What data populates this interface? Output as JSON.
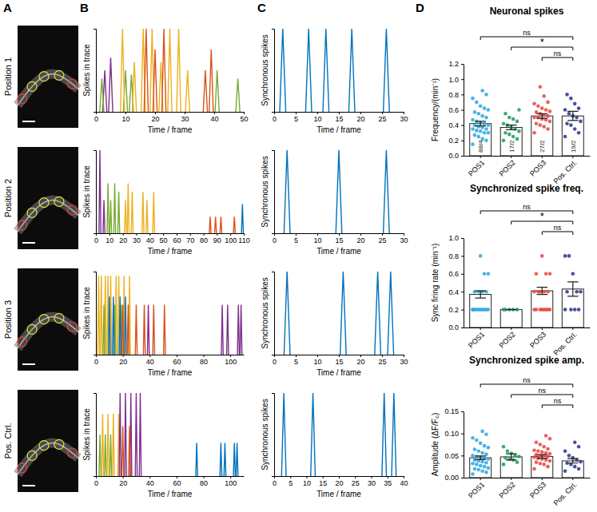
{
  "panel_labels": [
    "A",
    "B",
    "C",
    "D"
  ],
  "row_labels": [
    "Position 1",
    "Position 2",
    "Position 3",
    "Pos. Ctrl."
  ],
  "chart_data": [
    {
      "type": "spike",
      "xlabel": "Time / frame",
      "ylabel": "Spikes in trace",
      "xlim": [
        0,
        50
      ],
      "xticks": [
        0,
        10,
        20,
        30,
        40,
        50
      ],
      "ylim": [
        0,
        1
      ],
      "tick_labels": "x",
      "series": [
        {
          "color": "#7E2F8E",
          "x": [
            3,
            5
          ],
          "values": [
            0.5,
            0.65
          ]
        },
        {
          "color": "#77AC30",
          "x": [
            2,
            10,
            12,
            41,
            48
          ],
          "values": [
            0.4,
            0.5,
            0.45,
            0.5,
            0.4
          ]
        },
        {
          "color": "#EDB120",
          "x": [
            9,
            13,
            16,
            19,
            22,
            25,
            28,
            31
          ],
          "values": [
            1.0,
            0.6,
            1.0,
            1.0,
            0.6,
            1.0,
            1.0,
            0.5
          ]
        },
        {
          "color": "#D95319",
          "x": [
            17,
            20,
            23,
            37,
            39
          ],
          "values": [
            1.0,
            0.75,
            1.0,
            0.5,
            0.75
          ]
        }
      ]
    },
    {
      "type": "spike",
      "xlabel": "Time / frame",
      "ylabel": "Spikes in trace",
      "xlim": [
        0,
        110
      ],
      "xticks": [
        0,
        10,
        20,
        30,
        40,
        50,
        60,
        70,
        80,
        90,
        100,
        110
      ],
      "ylim": [
        0,
        1
      ],
      "tick_labels": "x",
      "series": [
        {
          "color": "#7E2F8E",
          "x": [
            3,
            6
          ],
          "values": [
            1.0,
            0.4
          ]
        },
        {
          "color": "#77AC30",
          "x": [
            9,
            11,
            14,
            17
          ],
          "values": [
            0.6,
            0.4,
            0.6,
            0.5
          ]
        },
        {
          "color": "#EDB120",
          "x": [
            22,
            24,
            27,
            35,
            38,
            43
          ],
          "values": [
            0.4,
            0.6,
            0.5,
            0.5,
            0.4,
            0.5
          ]
        },
        {
          "color": "#D95319",
          "x": [
            85,
            89,
            93,
            103
          ],
          "values": [
            0.2,
            0.2,
            0.2,
            0.2
          ]
        },
        {
          "color": "#0072BD",
          "x": [
            109
          ],
          "values": [
            0.35
          ]
        }
      ]
    },
    {
      "type": "spike",
      "xlabel": "Time / frame",
      "ylabel": "Spikes in trace",
      "xlim": [
        0,
        110
      ],
      "xticks": [
        0,
        20,
        40,
        60,
        80,
        100
      ],
      "ylim": [
        0,
        1
      ],
      "tick_labels": "x",
      "series": [
        {
          "color": "#EDB120",
          "x": [
            2,
            4,
            7,
            9,
            11,
            15,
            17,
            21,
            25
          ],
          "values": [
            0.95,
            0.95,
            0.95,
            0.95,
            0.95,
            0.95,
            0.95,
            0.95,
            0.95
          ]
        },
        {
          "color": "#77AC30",
          "x": [
            6,
            14,
            19
          ],
          "values": [
            0.6,
            0.6,
            0.6
          ]
        },
        {
          "color": "#0072BD",
          "x": [
            10,
            13,
            18,
            22
          ],
          "values": [
            0.7,
            0.7,
            0.7,
            0.7
          ]
        },
        {
          "color": "#D95319",
          "x": [
            20,
            24,
            30,
            36,
            43,
            51
          ],
          "values": [
            0.6,
            0.6,
            0.6,
            0.6,
            0.6,
            0.6
          ]
        },
        {
          "color": "#7E2F8E",
          "x": [
            39,
            94,
            98,
            106,
            108
          ],
          "values": [
            0.6,
            0.6,
            0.6,
            0.6,
            0.6
          ]
        }
      ]
    },
    {
      "type": "spike",
      "xlabel": "Time / frame",
      "ylabel": "Spikes in trace",
      "xlim": [
        0,
        110
      ],
      "xticks": [
        0,
        20,
        40,
        60,
        80,
        100
      ],
      "ylim": [
        0,
        1
      ],
      "tick_labels": "x",
      "series": [
        {
          "color": "#77AC30",
          "x": [
            3,
            7,
            11
          ],
          "values": [
            0.5,
            0.5,
            0.5
          ]
        },
        {
          "color": "#EDB120",
          "x": [
            5,
            9,
            13,
            17
          ],
          "values": [
            0.75,
            0.75,
            0.75,
            0.75
          ]
        },
        {
          "color": "#7E2F8E",
          "x": [
            18,
            22,
            26,
            30,
            33
          ],
          "values": [
            1.0,
            1.0,
            1.0,
            1.0,
            1.0
          ]
        },
        {
          "color": "#D95319",
          "x": [
            20,
            25
          ],
          "values": [
            0.6,
            0.6
          ]
        },
        {
          "color": "#0072BD",
          "x": [
            75,
            93,
            96,
            103,
            105
          ],
          "values": [
            0.4,
            0.4,
            0.4,
            0.4,
            0.4
          ]
        }
      ]
    },
    {
      "type": "spike",
      "xlabel": "Time / frame",
      "ylabel": "Synchronous spikes",
      "xlim": [
        0,
        30
      ],
      "xticks": [
        0,
        5,
        10,
        15,
        20,
        25,
        30
      ],
      "ylim": [
        0,
        1
      ],
      "tick_labels": "x",
      "series": [
        {
          "color": "#0072BD",
          "x": [
            2,
            8,
            12,
            18,
            26
          ],
          "values": [
            1,
            1,
            1,
            1,
            1
          ]
        }
      ]
    },
    {
      "type": "spike",
      "xlabel": "Time / frame",
      "ylabel": "Synchronous spikes",
      "xlim": [
        0,
        30
      ],
      "xticks": [
        0,
        5,
        10,
        15,
        20,
        25,
        30
      ],
      "ylim": [
        0,
        1
      ],
      "tick_labels": "x",
      "series": [
        {
          "color": "#0072BD",
          "x": [
            3,
            15,
            26
          ],
          "values": [
            1,
            1,
            1
          ]
        }
      ]
    },
    {
      "type": "spike",
      "xlabel": "Time / frame",
      "ylabel": "Synchronous spikes",
      "xlim": [
        0,
        30
      ],
      "xticks": [
        0,
        5,
        10,
        15,
        20,
        25,
        30
      ],
      "ylim": [
        0,
        1
      ],
      "tick_labels": "x",
      "series": [
        {
          "color": "#0072BD",
          "x": [
            3,
            16,
            24,
            27
          ],
          "values": [
            1,
            1,
            1,
            1
          ]
        }
      ]
    },
    {
      "type": "spike",
      "xlabel": "Time / frame",
      "ylabel": "Synchronous spikes",
      "xlim": [
        0,
        40
      ],
      "xticks": [
        0,
        5,
        10,
        15,
        20,
        25,
        30,
        35,
        40
      ],
      "ylim": [
        0,
        1
      ],
      "tick_labels": "x",
      "series": [
        {
          "color": "#0072BD",
          "x": [
            3,
            12,
            34,
            37
          ],
          "values": [
            1,
            1,
            1,
            1
          ]
        }
      ]
    },
    {
      "type": "bar",
      "title": "Neuronal spikes",
      "ylabel": "Frequency/(min⁻¹)",
      "categories": [
        "POS1",
        "POS2",
        "POS3",
        "Pos. Ctrl."
      ],
      "colors": [
        "#2aa7df",
        "#1a9c5b",
        "#e8453c",
        "#27368f"
      ],
      "values": [
        0.42,
        0.37,
        0.52,
        0.52
      ],
      "errors": [
        0.03,
        0.03,
        0.03,
        0.06
      ],
      "bar_labels": [
        "88/4",
        "17/2",
        "27/2",
        "19/2"
      ],
      "points": [
        [
          0.15,
          0.2,
          0.22,
          0.25,
          0.27,
          0.3,
          0.3,
          0.32,
          0.33,
          0.35,
          0.35,
          0.37,
          0.38,
          0.4,
          0.4,
          0.42,
          0.43,
          0.45,
          0.47,
          0.5,
          0.52,
          0.55,
          0.57,
          0.6,
          0.62,
          0.65,
          0.7,
          0.75,
          0.8,
          0.85
        ],
        [
          0.2,
          0.22,
          0.25,
          0.28,
          0.3,
          0.32,
          0.35,
          0.37,
          0.4,
          0.42,
          0.45,
          0.48,
          0.5,
          0.55,
          0.6
        ],
        [
          0.3,
          0.35,
          0.38,
          0.4,
          0.42,
          0.45,
          0.47,
          0.48,
          0.5,
          0.5,
          0.52,
          0.53,
          0.55,
          0.57,
          0.58,
          0.6,
          0.62,
          0.65,
          0.68,
          0.7,
          0.78,
          0.9
        ],
        [
          0.25,
          0.3,
          0.35,
          0.4,
          0.42,
          0.45,
          0.5,
          0.52,
          0.55,
          0.6,
          0.62,
          0.68,
          0.75,
          0.8
        ]
      ],
      "comparisons": [
        {
          "from": "POS1",
          "to": "Pos. Ctrl.",
          "label": "ns"
        },
        {
          "from": "POS2",
          "to": "Pos. Ctrl.",
          "label": "*"
        },
        {
          "from": "POS3",
          "to": "Pos. Ctrl.",
          "label": "ns"
        }
      ],
      "ylim": [
        0,
        1.2
      ],
      "yticks": [
        {
          "value": 0,
          "label": "0.0"
        },
        0.2,
        0.4,
        0.6,
        0.8,
        {
          "value": 1,
          "label": "1.0"
        },
        1.2
      ]
    },
    {
      "type": "bar",
      "title": "Synchronized spike freq.",
      "ylabel": "Sync firing rate (min⁻¹)",
      "categories": [
        "POS1",
        "POS2",
        "POS3",
        "Pos. Ctrl."
      ],
      "colors": [
        "#2aa7df",
        "#1a9c5b",
        "#e8453c",
        "#27368f"
      ],
      "values": [
        0.37,
        0.2,
        0.41,
        0.43
      ],
      "errors": [
        0.04,
        0,
        0.04,
        0.08
      ],
      "points": [
        [
          0.2,
          0.2,
          0.2,
          0.2,
          0.2,
          0.2,
          0.2,
          0.2,
          0.2,
          0.2,
          0.4,
          0.4,
          0.4,
          0.4,
          0.6,
          0.6,
          0.8
        ],
        [
          0.2,
          0.2,
          0.2,
          0.2,
          0.2
        ],
        [
          0.2,
          0.2,
          0.2,
          0.2,
          0.2,
          0.2,
          0.2,
          0.2,
          0.4,
          0.4,
          0.4,
          0.4,
          0.4,
          0.6,
          0.6,
          0.6,
          0.8
        ],
        [
          0.2,
          0.2,
          0.2,
          0.2,
          0.4,
          0.4,
          0.4,
          0.6,
          0.8,
          0.8
        ]
      ],
      "comparisons": [
        {
          "from": "POS1",
          "to": "Pos. Ctrl.",
          "label": "ns"
        },
        {
          "from": "POS2",
          "to": "Pos. Ctrl.",
          "label": "*"
        },
        {
          "from": "POS3",
          "to": "Pos. Ctrl.",
          "label": "ns"
        }
      ],
      "ylim": [
        0,
        1
      ],
      "yticks": [
        {
          "value": 0,
          "label": "0.0"
        },
        0.2,
        0.4,
        0.6,
        0.8,
        {
          "value": 1,
          "label": "1.0"
        }
      ]
    },
    {
      "type": "bar",
      "title": "Synchronized spike amp.",
      "ylabel": "Amplitude (ΔF/F₀)",
      "categories": [
        "POS1",
        "POS2",
        "POS3",
        "Pos. Ctrl."
      ],
      "colors": [
        "#2aa7df",
        "#1a9c5b",
        "#e8453c",
        "#27368f"
      ],
      "values": [
        0.045,
        0.047,
        0.048,
        0.038
      ],
      "errors": [
        0.004,
        0.007,
        0.004,
        0.005
      ],
      "points": [
        [
          0.008,
          0.012,
          0.015,
          0.018,
          0.02,
          0.022,
          0.025,
          0.027,
          0.03,
          0.032,
          0.034,
          0.036,
          0.038,
          0.04,
          0.042,
          0.044,
          0.046,
          0.048,
          0.05,
          0.053,
          0.056,
          0.06,
          0.064,
          0.068,
          0.072,
          0.078,
          0.085,
          0.09,
          0.098,
          0.105
        ],
        [
          0.03,
          0.035,
          0.04,
          0.042,
          0.045,
          0.048,
          0.05,
          0.055,
          0.06,
          0.07
        ],
        [
          0.02,
          0.025,
          0.03,
          0.032,
          0.035,
          0.038,
          0.04,
          0.042,
          0.044,
          0.046,
          0.048,
          0.05,
          0.05,
          0.052,
          0.054,
          0.056,
          0.058,
          0.06,
          0.062,
          0.065,
          0.07,
          0.075,
          0.08,
          0.088,
          0.095
        ],
        [
          0.015,
          0.02,
          0.025,
          0.03,
          0.033,
          0.036,
          0.04,
          0.045,
          0.05,
          0.06,
          0.07,
          0.08
        ]
      ],
      "comparisons": [
        {
          "from": "POS1",
          "to": "Pos. Ctrl.",
          "label": "ns"
        },
        {
          "from": "POS2",
          "to": "Pos. Ctrl.",
          "label": "ns"
        },
        {
          "from": "POS3",
          "to": "Pos. Ctrl.",
          "label": "ns"
        }
      ],
      "ylim": [
        0,
        0.15
      ],
      "yticks": [
        {
          "value": 0,
          "label": "0.00"
        },
        0.05,
        {
          "value": 0.1,
          "label": "0.10"
        },
        0.15
      ]
    }
  ]
}
